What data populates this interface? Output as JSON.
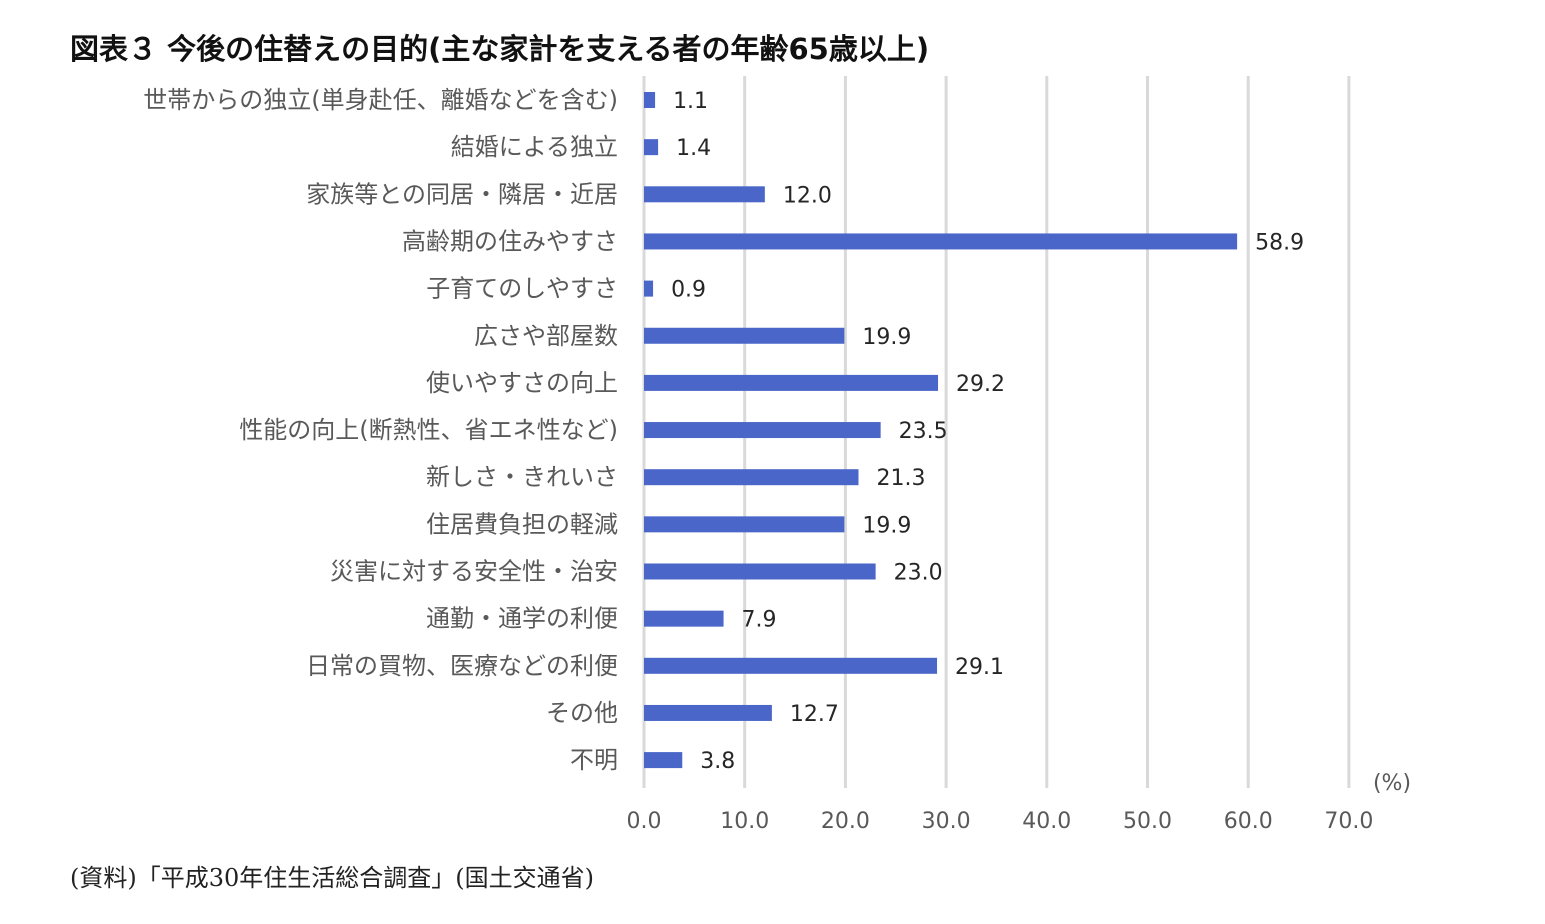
{
  "title": "図表３ 今後の住替えの目的(主な家計を支える者の年齢65歳以上)",
  "source": "(資料)「平成30年住生活総合調査」(国土交通省)",
  "chart_data": {
    "type": "bar",
    "orientation": "horizontal",
    "categories": [
      "世帯からの独立(単身赴任、離婚などを含む)",
      "結婚による独立",
      "家族等との同居・隣居・近居",
      "高齢期の住みやすさ",
      "子育てのしやすさ",
      "広さや部屋数",
      "使いやすさの向上",
      "性能の向上(断熱性、省エネ性など)",
      "新しさ・きれいさ",
      "住居費負担の軽減",
      "災害に対する安全性・治安",
      "通勤・通学の利便",
      "日常の買物、医療などの利便",
      "その他",
      "不明"
    ],
    "values": [
      1.1,
      1.4,
      12.0,
      58.9,
      0.9,
      19.9,
      29.2,
      23.5,
      21.3,
      19.9,
      23.0,
      7.9,
      29.1,
      12.7,
      3.8
    ],
    "value_labels": [
      "1.1",
      "1.4",
      "12.0",
      "58.9",
      "0.9",
      "19.9",
      "29.2",
      "23.5",
      "21.3",
      "19.9",
      "23.0",
      "7.9",
      "29.1",
      "12.7",
      "3.8"
    ],
    "x_ticks": [
      "0.0",
      "10.0",
      "20.0",
      "30.0",
      "40.0",
      "50.0",
      "60.0",
      "70.0"
    ],
    "xlim": [
      0,
      70
    ],
    "unit": "(%)",
    "bar_color": "#4A66C8",
    "grid_color": "#D9D9D9",
    "grid": true
  }
}
